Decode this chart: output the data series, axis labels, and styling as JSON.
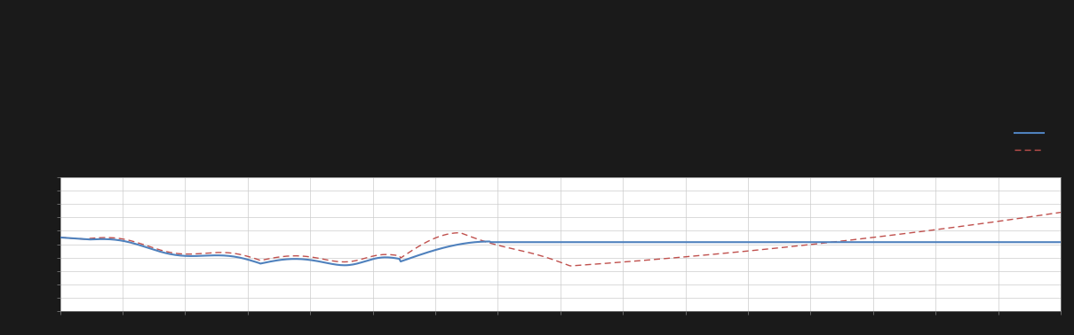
{
  "background_color": "#1a1a1a",
  "plot_bg_color": "#ffffff",
  "grid_color": "#cccccc",
  "blue_line_color": "#4f81bd",
  "red_line_color": "#c0504d",
  "figsize": [
    12.09,
    3.78
  ],
  "dpi": 100,
  "legend_blue_label": "",
  "legend_red_label": "",
  "spine_color": "#888888",
  "tick_color": "#888888"
}
